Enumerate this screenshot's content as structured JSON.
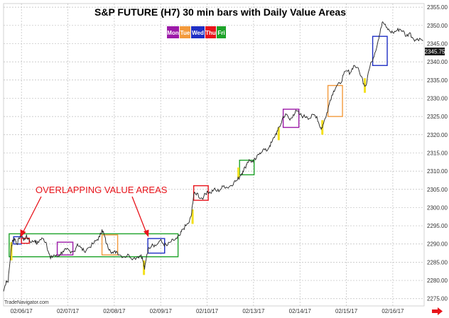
{
  "chart_data": {
    "type": "line",
    "title": "S&P FUTURE (H7) 30 min bars with Daily Value Areas",
    "legend": [
      {
        "label": "Mon",
        "color": "#9c1aa8"
      },
      {
        "label": "Tue",
        "color": "#f39a3c"
      },
      {
        "label": "Wed",
        "color": "#1f2fc4"
      },
      {
        "label": "Thu",
        "color": "#e8141b"
      },
      {
        "label": "Fri",
        "color": "#1ea32a"
      }
    ],
    "ylim": [
      2273,
      2356
    ],
    "y_ticks": [
      "2275.00",
      "2280.00",
      "2285.00",
      "2290.00",
      "2295.00",
      "2300.00",
      "2305.00",
      "2310.00",
      "2315.00",
      "2320.00",
      "2325.00",
      "2330.00",
      "2335.00",
      "2340.00",
      "2345.00",
      "2350.00",
      "2355.00"
    ],
    "x_ticks": [
      "02/06/17",
      "02/07/17",
      "02/08/17",
      "02/09/17",
      "02/10/17",
      "02/13/17",
      "02/14/17",
      "02/15/17",
      "02/16/17"
    ],
    "last_price": "2345.75",
    "series": [
      {
        "values": [
          [
            0,
            2277
          ],
          [
            0.25,
            2280
          ],
          [
            0.4,
            2279.5
          ],
          [
            0.5,
            2283
          ],
          [
            0.7,
            2289
          ],
          [
            0.8,
            2291
          ],
          [
            1.0,
            2291.5
          ],
          [
            1.2,
            2290
          ],
          [
            1.4,
            2291.5
          ],
          [
            1.6,
            2293
          ],
          [
            1.8,
            2291
          ],
          [
            2.0,
            2292
          ],
          [
            2.2,
            2291.5
          ],
          [
            2.5,
            2290.5
          ],
          [
            2.8,
            2291
          ],
          [
            3.0,
            2290
          ],
          [
            3.2,
            2291
          ],
          [
            3.5,
            2291.5
          ],
          [
            3.8,
            2290.5
          ],
          [
            4.0,
            2288
          ],
          [
            4.2,
            2286
          ],
          [
            4.5,
            2287
          ],
          [
            4.8,
            2286.5
          ],
          [
            5.0,
            2287
          ],
          [
            5.3,
            2288
          ],
          [
            5.6,
            2288.5
          ],
          [
            6.0,
            2287.5
          ],
          [
            6.3,
            2288
          ],
          [
            6.6,
            2290
          ],
          [
            6.9,
            2289
          ],
          [
            7.2,
            2288
          ],
          [
            7.6,
            2289
          ],
          [
            8.0,
            2290
          ],
          [
            8.3,
            2291
          ],
          [
            8.6,
            2292
          ],
          [
            8.8,
            2294
          ],
          [
            9.0,
            2292.5
          ],
          [
            9.2,
            2290
          ],
          [
            9.5,
            2288.5
          ],
          [
            9.8,
            2287.5
          ],
          [
            10.1,
            2288
          ],
          [
            10.4,
            2287
          ],
          [
            10.8,
            2286.5
          ],
          [
            11.2,
            2287
          ],
          [
            11.6,
            2286
          ],
          [
            12.0,
            2286.5
          ],
          [
            12.3,
            2287
          ],
          [
            12.5,
            2285
          ],
          [
            12.6,
            2283
          ],
          [
            12.8,
            2287
          ],
          [
            13.0,
            2289
          ],
          [
            13.3,
            2290
          ],
          [
            13.6,
            2289.5
          ],
          [
            14.0,
            2291
          ],
          [
            14.3,
            2290
          ],
          [
            14.6,
            2289.5
          ],
          [
            14.9,
            2290.5
          ],
          [
            15.2,
            2291
          ],
          [
            15.5,
            2291.5
          ],
          [
            15.8,
            2292.5
          ],
          [
            16.0,
            2294
          ],
          [
            16.3,
            2295
          ],
          [
            16.6,
            2296
          ],
          [
            16.8,
            2298
          ],
          [
            16.9,
            2301
          ],
          [
            17.0,
            2303.5
          ],
          [
            17.3,
            2304
          ],
          [
            17.6,
            2302.5
          ],
          [
            17.9,
            2303
          ],
          [
            18.2,
            2304.5
          ],
          [
            18.5,
            2304
          ],
          [
            18.8,
            2305
          ],
          [
            19.1,
            2304.5
          ],
          [
            19.4,
            2305
          ],
          [
            19.7,
            2306
          ],
          [
            20.0,
            2305.5
          ],
          [
            20.3,
            2306
          ],
          [
            20.6,
            2307
          ],
          [
            20.9,
            2307.5
          ],
          [
            21.2,
            2309
          ],
          [
            21.4,
            2310
          ],
          [
            21.6,
            2311
          ],
          [
            21.8,
            2312.5
          ],
          [
            22.0,
            2313
          ],
          [
            22.3,
            2312.5
          ],
          [
            22.6,
            2313.5
          ],
          [
            22.9,
            2315
          ],
          [
            23.2,
            2316
          ],
          [
            23.5,
            2315.5
          ],
          [
            23.8,
            2317
          ],
          [
            24.0,
            2318
          ],
          [
            24.3,
            2320
          ],
          [
            24.5,
            2321
          ],
          [
            24.8,
            2323
          ],
          [
            25.0,
            2325
          ],
          [
            25.3,
            2325.5
          ],
          [
            25.6,
            2324
          ],
          [
            25.9,
            2325.5
          ],
          [
            26.2,
            2326.5
          ],
          [
            26.5,
            2325.5
          ],
          [
            26.8,
            2325
          ],
          [
            27.1,
            2325
          ],
          [
            27.4,
            2324.5
          ],
          [
            27.7,
            2325.5
          ],
          [
            28.0,
            2325
          ],
          [
            28.2,
            2323
          ],
          [
            28.4,
            2321.5
          ],
          [
            28.6,
            2323
          ],
          [
            28.9,
            2326
          ],
          [
            29.2,
            2329.5
          ],
          [
            29.5,
            2332
          ],
          [
            29.8,
            2333.5
          ],
          [
            30.1,
            2334
          ],
          [
            30.4,
            2336.5
          ],
          [
            30.7,
            2337.5
          ],
          [
            31.0,
            2337
          ],
          [
            31.3,
            2339
          ],
          [
            31.6,
            2338.5
          ],
          [
            32.0,
            2336
          ],
          [
            32.2,
            2334
          ],
          [
            32.4,
            2333.5
          ],
          [
            32.6,
            2337
          ],
          [
            32.9,
            2340
          ],
          [
            33.2,
            2342.5
          ],
          [
            33.5,
            2346
          ],
          [
            33.7,
            2349
          ],
          [
            33.9,
            2351
          ],
          [
            34.2,
            2349.5
          ],
          [
            34.5,
            2348.5
          ],
          [
            34.8,
            2348
          ],
          [
            35.1,
            2348.5
          ],
          [
            35.4,
            2349
          ],
          [
            35.7,
            2348.5
          ],
          [
            36.0,
            2347
          ],
          [
            36.3,
            2348
          ],
          [
            36.6,
            2346.5
          ],
          [
            36.9,
            2346
          ],
          [
            37.2,
            2346.5
          ],
          [
            37.5,
            2345.75
          ]
        ]
      }
    ],
    "value_areas": [
      {
        "day": "Wed",
        "color": "#1f2fc4",
        "x0": 0.9,
        "x1": 1.6,
        "y0": 2290.0,
        "y1": 2292.0
      },
      {
        "day": "Thu",
        "color": "#e8141b",
        "x0": 1.6,
        "x1": 2.3,
        "y0": 2290.2,
        "y1": 2291.6
      },
      {
        "day": "Fri",
        "color": "#1ea32a",
        "x0": 0.5,
        "x1": 15.6,
        "y0": 2286.5,
        "y1": 2292.8
      },
      {
        "day": "Mon",
        "color": "#9c1aa8",
        "x0": 4.8,
        "x1": 6.2,
        "y0": 2287.0,
        "y1": 2290.5
      },
      {
        "day": "Tue",
        "color": "#f39a3c",
        "x0": 8.8,
        "x1": 10.2,
        "y0": 2287.0,
        "y1": 2292.5
      },
      {
        "day": "Wed",
        "color": "#1f2fc4",
        "x0": 12.9,
        "x1": 14.4,
        "y0": 2287.5,
        "y1": 2291.5
      },
      {
        "day": "Thu",
        "color": "#e8141b",
        "x0": 17.0,
        "x1": 18.3,
        "y0": 2302.0,
        "y1": 2306.0
      },
      {
        "day": "Fri",
        "color": "#1ea32a",
        "x0": 21.1,
        "x1": 22.4,
        "y0": 2309.0,
        "y1": 2313.0
      },
      {
        "day": "Mon",
        "color": "#9c1aa8",
        "x0": 25.0,
        "x1": 26.4,
        "y0": 2322.0,
        "y1": 2327.0
      },
      {
        "day": "Tue",
        "color": "#f39a3c",
        "x0": 29.0,
        "x1": 30.3,
        "y0": 2325.0,
        "y1": 2333.5
      },
      {
        "day": "Wed",
        "color": "#1f2fc4",
        "x0": 33.0,
        "x1": 34.3,
        "y0": 2339.0,
        "y1": 2347.0
      }
    ],
    "ib_markers": [
      {
        "x": 0.7,
        "y0": 2285.5,
        "y1": 2290.5
      },
      {
        "x": 12.55,
        "y0": 2281.5,
        "y1": 2285.5
      },
      {
        "x": 16.9,
        "y0": 2295.5,
        "y1": 2299.5
      },
      {
        "x": 21.0,
        "y0": 2308.0,
        "y1": 2311.0
      },
      {
        "x": 24.6,
        "y0": 2318.5,
        "y1": 2322.0
      },
      {
        "x": 28.5,
        "y0": 2320.0,
        "y1": 2324.0
      },
      {
        "x": 32.3,
        "y0": 2331.5,
        "y1": 2335.5
      }
    ],
    "annotation": "OVERLAPPING VALUE AREAS",
    "watermark": "TradeNavigator.com"
  }
}
